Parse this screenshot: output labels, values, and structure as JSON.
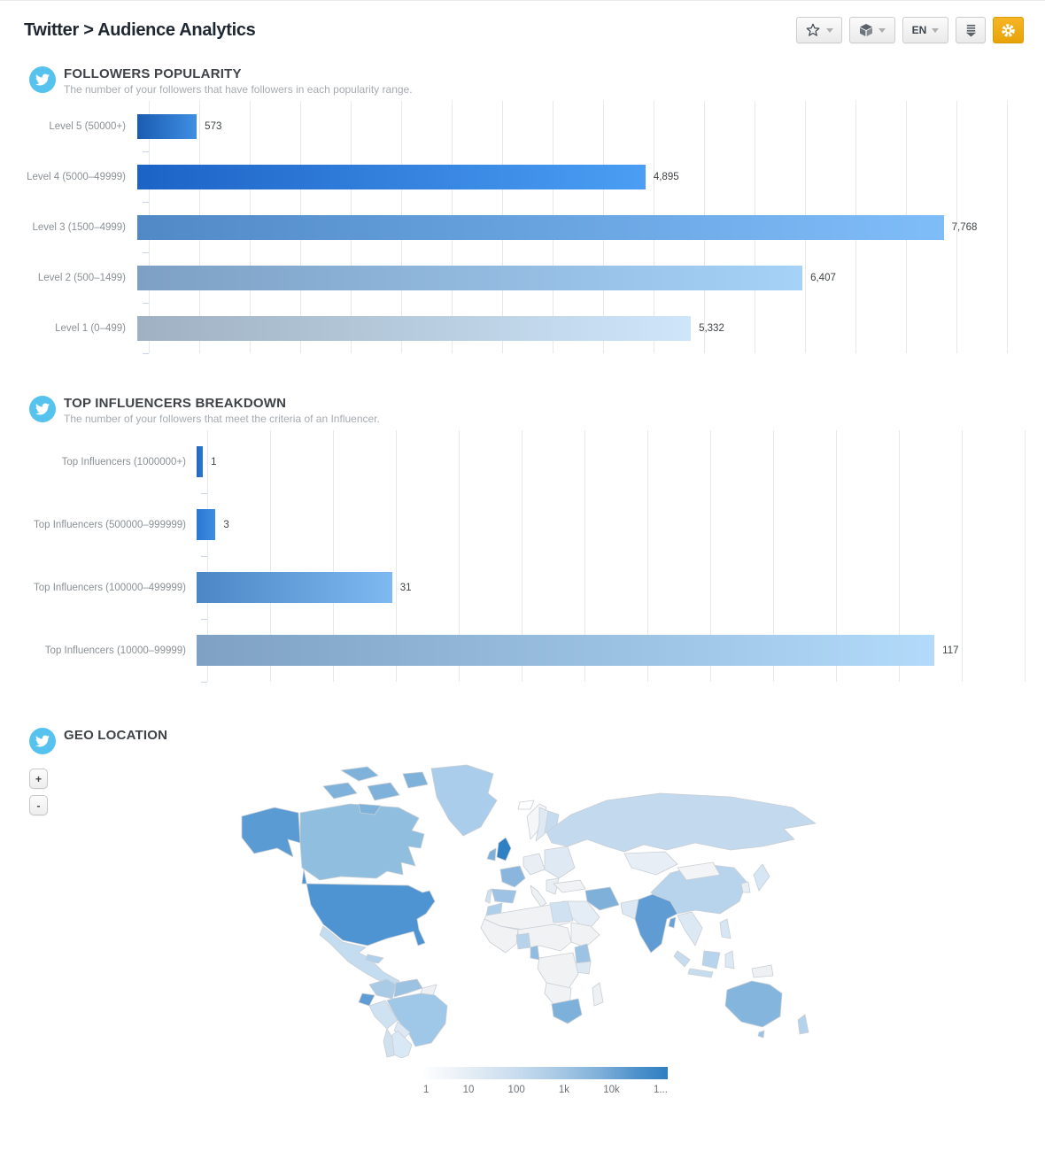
{
  "header": {
    "title": "Twitter > Audience Analytics"
  },
  "toolbar": {
    "language": "EN",
    "buttons": [
      {
        "name": "favorites",
        "icon": "star-icon"
      },
      {
        "name": "widgets",
        "icon": "cube-icon"
      },
      {
        "name": "language",
        "icon": "chevron-down-icon"
      },
      {
        "name": "download",
        "icon": "download-icon"
      },
      {
        "name": "settings",
        "icon": "gear-icon"
      }
    ],
    "accent_color": "#eba613"
  },
  "brand": {
    "twitter_blue": "#55c3ee"
  },
  "sections": {
    "followers_popularity": {
      "title": "FOLLOWERS POPULARITY",
      "subtitle": "The number of your followers that have followers in each popularity range."
    },
    "top_influencers": {
      "title": "TOP INFLUENCERS BREAKDOWN",
      "subtitle": "The number of your followers that meet the criteria of an Influencer."
    },
    "geo_location": {
      "title": "GEO LOCATION",
      "zoom_in": "+",
      "zoom_out": "-"
    }
  },
  "chart_data": [
    {
      "type": "bar",
      "orientation": "horizontal",
      "title": "FOLLOWERS POPULARITY",
      "categories": [
        "Level 5 (50000+)",
        "Level 4 (5000–49999)",
        "Level 3 (1500–4999)",
        "Level 2 (500–1499)",
        "Level 1 (0–499)"
      ],
      "values": [
        573,
        4895,
        7768,
        6407,
        5332
      ],
      "value_labels": [
        "573",
        "4,895",
        "7,768",
        "6,407",
        "5,332"
      ],
      "xlim": [
        0,
        8590
      ],
      "grid": true,
      "bar_colors": [
        [
          "#1a5cb2",
          "#3f8fe2"
        ],
        [
          "#1c63c6",
          "#4b9ef4"
        ],
        [
          "#5189c6",
          "#7fbdf9"
        ],
        [
          "#7da0c4",
          "#a6d2f8"
        ],
        [
          "#9fb1c2",
          "#cfe6fa"
        ]
      ]
    },
    {
      "type": "bar",
      "orientation": "horizontal",
      "title": "TOP INFLUENCERS BREAKDOWN",
      "categories": [
        "Top Influencers (1000000+)",
        "Top Influencers (500000–999999)",
        "Top Influencers (100000–499999)",
        "Top Influencers (10000–99999)"
      ],
      "values": [
        1,
        3,
        31,
        117
      ],
      "value_labels": [
        "1",
        "3",
        "31",
        "117"
      ],
      "xlim": [
        0,
        132
      ],
      "grid": true,
      "bar_colors": [
        [
          "#2368be",
          "#2d77cd"
        ],
        [
          "#2a77d2",
          "#3f8de2"
        ],
        [
          "#4c86c4",
          "#7fb9f2"
        ],
        [
          "#7ea1c4",
          "#b2daf9"
        ]
      ]
    },
    {
      "type": "heatmap",
      "title": "GEO LOCATION",
      "legend": {
        "labels": [
          "1",
          "10",
          "100",
          "1k",
          "10k",
          "1..."
        ],
        "scale": "log",
        "colors": [
          "#ffffff",
          "#2e7fc2"
        ]
      }
    }
  ],
  "map": {
    "border_color": "#c9ced4",
    "ocean": "#ffffff",
    "regions": {
      "alaska": "#5b9bd3",
      "canada": "#8fbede",
      "arctic-isl-1": "#7fb2da",
      "arctic-isl-2": "#7fb2da",
      "arctic-isl-3": "#7fb2da",
      "arctic-isl-4": "#7fb2da",
      "arctic-isl-5": "#7fb2da",
      "greenland": "#a9cdea",
      "iceland": "#ffffff",
      "usa": "#4e94d2",
      "mexico": "#c3dcef",
      "cuba": "#aed0ea",
      "colombia": "#a9cbe6",
      "venezuela": "#9cc2e2",
      "guyana": "#eef1f4",
      "ecuador": "#5f9cd3",
      "peru": "#cfe2f2",
      "brazil": "#9fc7e7",
      "bolivia": "#dce9f4",
      "argentina": "#d9e8f5",
      "chile": "#cfe0ef",
      "norway": "#f4f6f8",
      "sweden": "#dfe9f3",
      "finland": "#c6dbee",
      "uk": "#2f80c3",
      "ireland": "#7fb0d9",
      "france": "#8ab6dd",
      "spain": "#9dc2e4",
      "portugal": "#cfe0ef",
      "germany": "#e8eef4",
      "italy": "#eef1f3",
      "east-europe": "#dfe9f3",
      "balkans": "#e8eef4",
      "russia": "#c2d9ee",
      "kazakhstan": "#e8eef5",
      "turkey": "#f0f2f5",
      "iran": "#7fb0d9",
      "saudi": "#e4edf5",
      "morocco": "#aecfe9",
      "north-africa": "#f1f2f4",
      "egypt": "#cfe2f2",
      "west-africa": "#f1f2f4",
      "nigeria": "#b7d3eb",
      "cameroon": "#8fbce0",
      "central-africa": "#f1f2f4",
      "horn-africa": "#f1f2f4",
      "kenya": "#9cc3e4",
      "tanzania": "#dce8f2",
      "congo": "#f1f2f4",
      "angola": "#f1f2f4",
      "south-africa": "#7db1da",
      "madagascar": "#eef1f3",
      "pakistan": "#dce9f4",
      "india": "#5f9cd3",
      "bangladesh": "#6aa3d8",
      "china": "#b8d4ec",
      "mongolia": "#f2f4f6",
      "indochina": "#dce9f4",
      "sumatra": "#c6dcef",
      "java": "#c6dcef",
      "borneo": "#b8d4ec",
      "sulawesi": "#dce9f4",
      "philippines": "#d6e6f4",
      "japan": "#d6e6f4",
      "korea": "#e8eef4",
      "png": "#eef1f3",
      "australia": "#84b5dc",
      "tasmania": "#9cc3e4",
      "new-zealand": "#b5d2ec"
    }
  }
}
